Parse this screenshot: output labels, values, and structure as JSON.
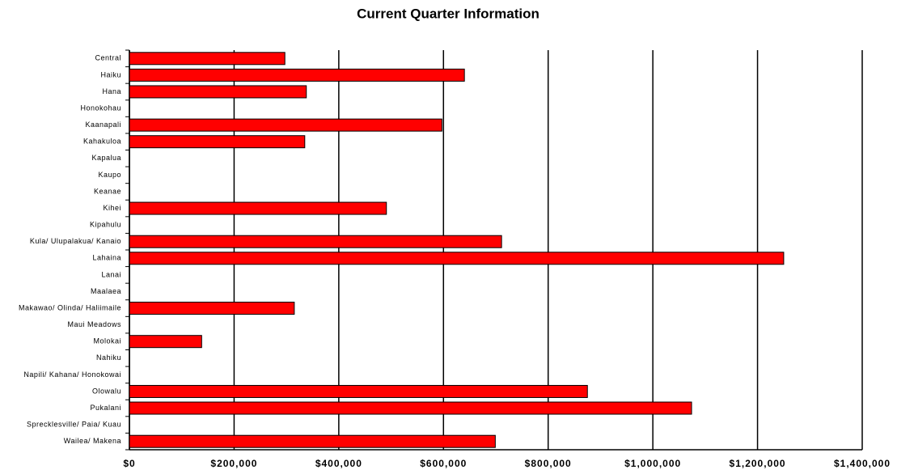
{
  "chart_data": {
    "type": "bar",
    "orientation": "horizontal",
    "title": "Current Quarter Information",
    "categories": [
      "Central",
      "Haiku",
      "Hana",
      "Honokohau",
      "Kaanapali",
      "Kahakuloa",
      "Kapalua",
      "Kaupo",
      "Keanae",
      "Kihei",
      "Kipahulu",
      "Kula/ Ulupalakua/ Kanaio",
      "Lahaina",
      "Lanai",
      "Maalaea",
      "Makawao/ Olinda/ Haliimaile",
      "Maui Meadows",
      "Molokai",
      "Nahiku",
      "Napili/ Kahana/ Honokowai",
      "Olowalu",
      "Pukalani",
      "Sprecklesville/ Paia/ Kuau",
      "Wailea/ Makena"
    ],
    "values": [
      297000,
      640000,
      338000,
      null,
      597000,
      335000,
      null,
      null,
      null,
      491000,
      null,
      711000,
      1250000,
      null,
      null,
      315000,
      null,
      138000,
      null,
      null,
      875000,
      1074000,
      null,
      699000
    ],
    "color": "#ff0000",
    "xlim": [
      0,
      1400000
    ],
    "xticks": [
      {
        "value": 0,
        "label": "$0"
      },
      {
        "value": 200000,
        "label": "$200,000"
      },
      {
        "value": 400000,
        "label": "$400,000"
      },
      {
        "value": 600000,
        "label": "$600,000"
      },
      {
        "value": 800000,
        "label": "$800,000"
      },
      {
        "value": 1000000,
        "label": "$1,000,000"
      },
      {
        "value": 1200000,
        "label": "$1,200,000"
      },
      {
        "value": 1400000,
        "label": "$1,400,000"
      }
    ],
    "grid": true
  }
}
